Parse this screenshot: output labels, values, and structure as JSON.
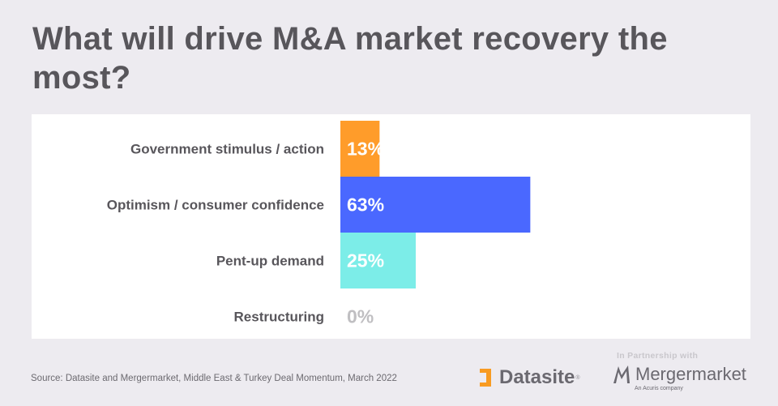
{
  "title": "What will drive M&A market recovery the most?",
  "source": "Source: Datasite and Mergermarket, Middle East & Turkey Deal Momentum, March 2022",
  "branding": {
    "partnership_label": "In Partnership with",
    "datasite_name": "Datasite",
    "datasite_registered": "®",
    "mergermarket_name": "Mergermarket",
    "mergermarket_tagline": "An Acuris company",
    "datasite_icon": "datasite-bracket-icon",
    "mergermarket_icon": "mergermarket-m-icon",
    "datasite_color": "#f89b22",
    "logo_text_color": "#6b6970"
  },
  "chart_data": {
    "type": "bar",
    "orientation": "horizontal",
    "title": "What will drive M&A market recovery the most?",
    "xlabel": "",
    "ylabel": "",
    "xlim": [
      0,
      100
    ],
    "grid": false,
    "legend": "none",
    "categories": [
      "Government stimulus / action",
      "Optimism / consumer confidence",
      "Pent-up demand",
      "Restructuring"
    ],
    "values": [
      13,
      63,
      25,
      0
    ],
    "value_labels": [
      "13%",
      "63%",
      "25%",
      "0%"
    ],
    "colors": [
      "#ff9c2a",
      "#4a68ff",
      "#7cede8",
      "#c0bfc2"
    ],
    "unit": "%"
  }
}
